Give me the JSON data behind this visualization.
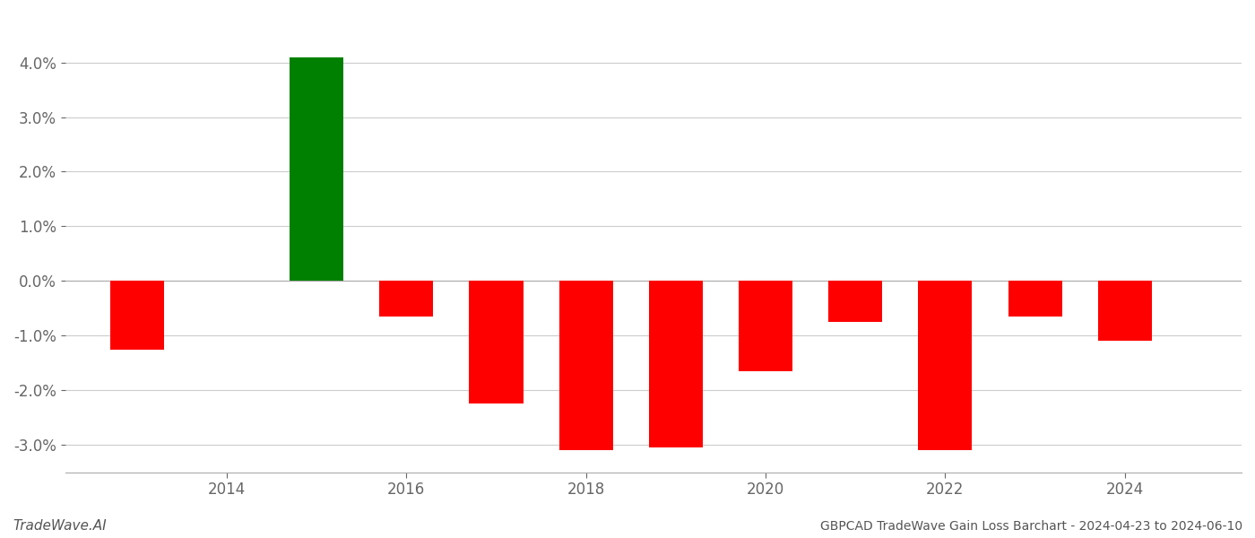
{
  "years": [
    2013,
    2015,
    2016,
    2017,
    2018,
    2019,
    2020,
    2021,
    2022,
    2023,
    2024
  ],
  "values": [
    -1.25,
    4.1,
    -0.65,
    -2.25,
    -3.1,
    -3.05,
    -1.65,
    -0.75,
    -3.1,
    -0.65,
    -1.1
  ],
  "colors": [
    "#ff0000",
    "#008000",
    "#ff0000",
    "#ff0000",
    "#ff0000",
    "#ff0000",
    "#ff0000",
    "#ff0000",
    "#ff0000",
    "#ff0000",
    "#ff0000"
  ],
  "title": "GBPCAD TradeWave Gain Loss Barchart - 2024-04-23 to 2024-06-10",
  "footer_left": "TradeWave.AI",
  "ylim": [
    -3.5,
    4.7
  ],
  "yticks": [
    -3.0,
    -2.0,
    -1.0,
    0.0,
    1.0,
    2.0,
    3.0,
    4.0
  ],
  "background_color": "#ffffff",
  "grid_color": "#cccccc",
  "bar_width": 0.6,
  "xlim": [
    2012.2,
    2025.3
  ]
}
